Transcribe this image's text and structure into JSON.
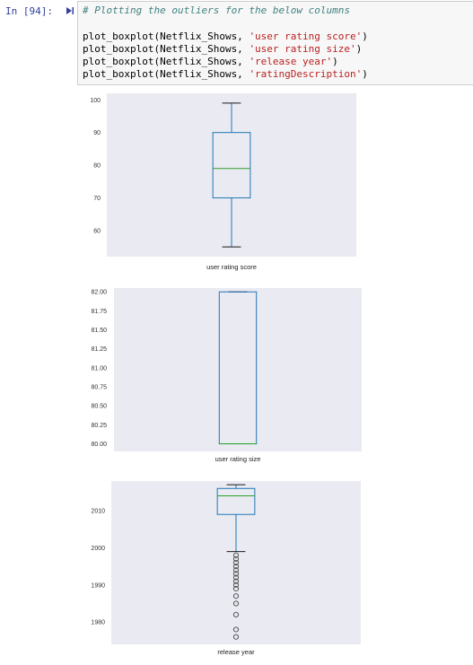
{
  "cell": {
    "prompt": "In [94]:",
    "comment": "# Plotting the outliers for the below columns",
    "lines": [
      {
        "func": "plot_boxplot(Netflix_Shows, ",
        "arg": "'user rating score'",
        "close": ")"
      },
      {
        "func": "plot_boxplot(Netflix_Shows, ",
        "arg": "'user rating size'",
        "close": ")"
      },
      {
        "func": "plot_boxplot(Netflix_Shows, ",
        "arg": "'release year'",
        "close": ")"
      },
      {
        "func": "plot_boxplot(Netflix_Shows, ",
        "arg": "'ratingDescription'",
        "close": ")"
      }
    ]
  },
  "colors": {
    "plot_bg": "#eaeaf2",
    "box": "#1f77b4",
    "median": "#2ca02c",
    "whisker_cap": "#1a1a1a",
    "flier": "#555555"
  },
  "chart_data": [
    {
      "type": "box",
      "xlabel": "user rating score",
      "ylim": [
        52,
        102
      ],
      "yticks": [
        60,
        70,
        80,
        90,
        100
      ],
      "ytick_labels": [
        "60",
        "70",
        "80",
        "90",
        "100"
      ],
      "box": {
        "whisker_low": 55,
        "q1": 70,
        "median": 79,
        "q3": 90,
        "whisker_high": 99
      },
      "fliers": [],
      "grid": false
    },
    {
      "type": "box",
      "xlabel": "user rating size",
      "ylim": [
        79.9,
        82.05
      ],
      "yticks": [
        80.0,
        80.25,
        80.5,
        80.75,
        81.0,
        81.25,
        81.5,
        81.75,
        82.0
      ],
      "ytick_labels": [
        "80.00",
        "80.25",
        "80.50",
        "80.75",
        "81.00",
        "81.25",
        "81.50",
        "81.75",
        "82.00"
      ],
      "box": {
        "whisker_low": 80,
        "q1": 80,
        "median": 80,
        "q3": 82,
        "whisker_high": 82
      },
      "fliers": [],
      "grid": false
    },
    {
      "type": "box",
      "xlabel": "release year",
      "ylim": [
        1974,
        2018
      ],
      "yticks": [
        1980,
        1990,
        2000,
        2010
      ],
      "ytick_labels": [
        "1980",
        "1990",
        "2000",
        "2010"
      ],
      "box": {
        "whisker_low": 1999,
        "q1": 2009,
        "median": 2014,
        "q3": 2016,
        "whisker_high": 2017
      },
      "fliers": [
        1998,
        1997,
        1996,
        1995,
        1994,
        1993,
        1992,
        1991,
        1990,
        1989,
        1987,
        1985,
        1982,
        1978,
        1976
      ],
      "grid": false
    }
  ]
}
